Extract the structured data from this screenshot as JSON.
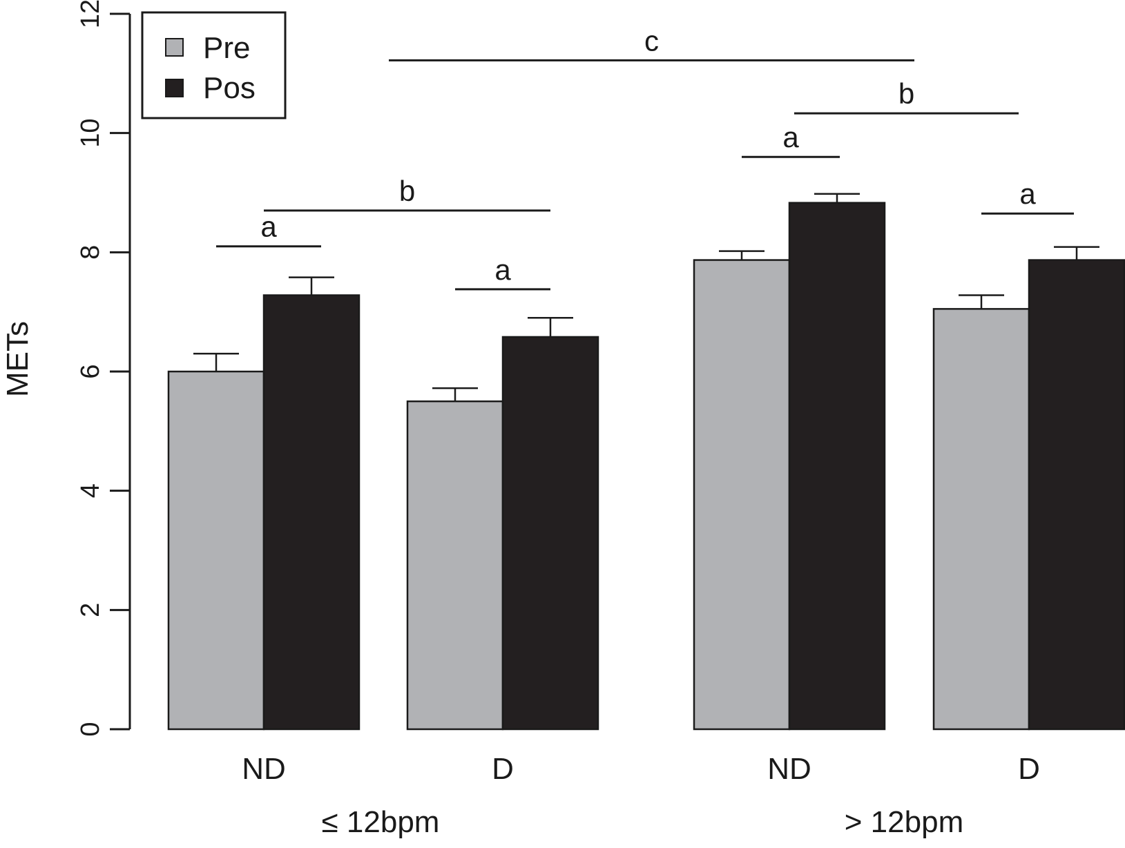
{
  "chart_data": {
    "type": "bar",
    "ylabel": "METs",
    "ylim": [
      0,
      12
    ],
    "yticks": [
      "0",
      "2",
      "4",
      "6",
      "8",
      "10",
      "12"
    ],
    "grid": false,
    "legend_position": "top-left",
    "categories": [
      "ND",
      "D",
      "ND",
      "D"
    ],
    "groups": [
      "≤ 12bpm",
      "> 12bpm"
    ],
    "series": [
      {
        "name": "Pre",
        "color": "#b1b2b5",
        "values": [
          6.0,
          5.5,
          7.87,
          7.05
        ],
        "errors": [
          0.3,
          0.22,
          0.15,
          0.23
        ]
      },
      {
        "name": "Pos",
        "color": "#231f20",
        "values": [
          7.28,
          6.58,
          8.83,
          7.87
        ],
        "errors": [
          0.3,
          0.32,
          0.15,
          0.22
        ]
      }
    ],
    "annotations": [
      {
        "label": "a",
        "y": 8.1
      },
      {
        "label": "b",
        "y": 8.7
      },
      {
        "label": "a",
        "y": 7.38
      },
      {
        "label": "a",
        "y": 9.6
      },
      {
        "label": "a",
        "y": 8.65
      },
      {
        "label": "b",
        "y": 10.33
      },
      {
        "label": "c",
        "y": 11.22
      }
    ]
  }
}
